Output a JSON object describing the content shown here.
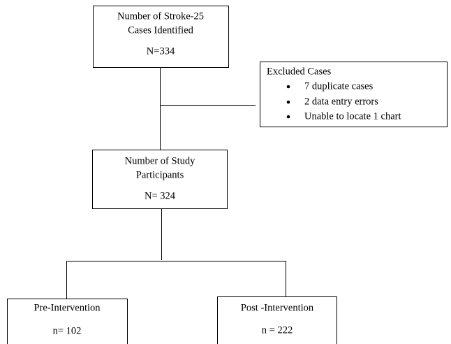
{
  "identified": {
    "lines": [
      "Number of Stroke-25",
      "Cases Identified"
    ],
    "count": "N=334"
  },
  "excluded": {
    "title": "Excluded Cases",
    "items": [
      "7 duplicate cases",
      "2 data entry errors",
      "Unable to locate 1 chart"
    ]
  },
  "participants": {
    "lines": [
      "Number of Study",
      "Participants"
    ],
    "count": "N= 324"
  },
  "pre": {
    "label": "Pre-Intervention",
    "count": "n= 102"
  },
  "post": {
    "label": "Post -Intervention",
    "count": "n = 222"
  }
}
